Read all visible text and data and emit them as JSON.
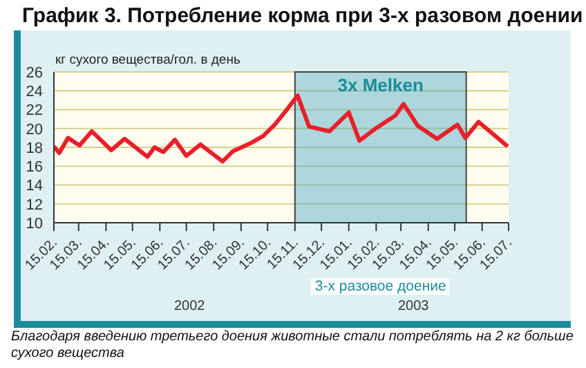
{
  "chart_data": {
    "type": "line",
    "title": "График 3. Потребление корма при 3-х разовом доении",
    "ylabel": "кг сухого вещества/гол. в день",
    "x": [
      "2002-02-15",
      "2002-02-21",
      "2002-03-03",
      "2002-03-16",
      "2002-03-30",
      "2002-04-21",
      "2002-05-06",
      "2002-06-01",
      "2002-06-09",
      "2002-06-19",
      "2002-07-02",
      "2002-07-15",
      "2002-07-31",
      "2002-08-25",
      "2002-09-06",
      "2002-09-27",
      "2002-10-10",
      "2002-10-23",
      "2002-11-05",
      "2002-11-18",
      "2002-12-01",
      "2002-12-24",
      "2003-01-15",
      "2003-01-27",
      "2003-02-13",
      "2003-03-09",
      "2003-03-18",
      "2003-04-03",
      "2003-04-25",
      "2003-05-18",
      "2003-05-27",
      "2003-06-11",
      "2003-07-14"
    ],
    "series": [
      {
        "color": "#e8202a",
        "values": [
          18.1,
          17.4,
          19.0,
          18.2,
          19.7,
          17.7,
          18.9,
          17.0,
          18.0,
          17.5,
          18.8,
          17.1,
          18.3,
          16.5,
          17.6,
          18.5,
          19.2,
          20.4,
          21.9,
          23.5,
          20.2,
          19.7,
          21.7,
          18.7,
          19.9,
          21.4,
          22.6,
          20.3,
          18.9,
          20.4,
          19.0,
          20.7,
          18.1
        ]
      }
    ],
    "xlim": [
      "2002-02-15",
      "2003-07-15"
    ],
    "xticks": [
      {
        "value": "2002-02-15",
        "label": "15.02."
      },
      {
        "value": "2002-03-15",
        "label": "15.03."
      },
      {
        "value": "2002-04-15",
        "label": "15.04."
      },
      {
        "value": "2002-05-15",
        "label": "15.05."
      },
      {
        "value": "2002-06-15",
        "label": "15.06."
      },
      {
        "value": "2002-07-15",
        "label": "15.07."
      },
      {
        "value": "2002-08-15",
        "label": "15.08."
      },
      {
        "value": "2002-09-15",
        "label": "15.09."
      },
      {
        "value": "2002-10-15",
        "label": "15.10."
      },
      {
        "value": "2002-11-15",
        "label": "15.11."
      },
      {
        "value": "2002-12-15",
        "label": "15.12."
      },
      {
        "value": "2003-01-15",
        "label": "15.01."
      },
      {
        "value": "2003-02-15",
        "label": "15.02."
      },
      {
        "value": "2003-03-15",
        "label": "15.03."
      },
      {
        "value": "2003-04-15",
        "label": "15.04."
      },
      {
        "value": "2003-05-15",
        "label": "15.05."
      },
      {
        "value": "2003-06-15",
        "label": "15.06."
      },
      {
        "value": "2003-07-15",
        "label": "15.07."
      }
    ],
    "ylim": [
      10,
      26
    ],
    "yticks": [
      10,
      12,
      14,
      16,
      18,
      20,
      22,
      24,
      26
    ],
    "bands": [
      {
        "axis": "x",
        "from": "2002-11-15",
        "to": "2003-05-28",
        "label": "3x Melken",
        "color": "#4aa8c4"
      }
    ],
    "annotations": [
      "3-х разовое доение",
      "2002",
      "2003",
      "Благодаря введению третьего доения животные стали потреблять на 2 кг больше сухого вещества"
    ],
    "grid": "y",
    "marker": "none",
    "line_style": "solid"
  }
}
